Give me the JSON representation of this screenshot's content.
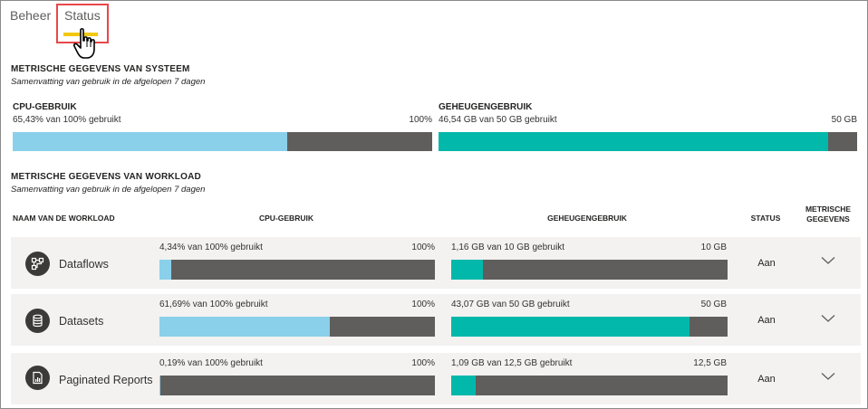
{
  "tabs": [
    {
      "label": "Beheer"
    },
    {
      "label": "Status"
    }
  ],
  "system": {
    "title": "METRISCHE GEGEVENS VAN SYSTEEM",
    "subtitle": "Samenvatting van gebruik in de afgelopen 7 dagen",
    "cpu": {
      "label": "CPU-GEBRUIK",
      "usage_text": "65,43% van 100% gebruikt",
      "max_text": "100%",
      "fraction": 0.6543
    },
    "memory": {
      "label": "GEHEUGENGEBRUIK",
      "usage_text": "46,54 GB van 50 GB gebruikt",
      "max_text": "50 GB",
      "fraction": 0.9308
    }
  },
  "workload": {
    "title": "METRISCHE GEGEVENS VAN WORKLOAD",
    "subtitle": "Samenvatting van gebruik in de afgelopen 7 dagen",
    "columns": {
      "name": "NAAM VAN DE WORKLOAD",
      "cpu": "CPU-GEBRUIK",
      "memory": "GEHEUGENGEBRUIK",
      "status": "STATUS",
      "metrics_line1": "METRISCHE",
      "metrics_line2": "GEGEVENS"
    },
    "rows": [
      {
        "name": "Dataflows",
        "icon": "dataflow-icon",
        "cpu_text": "4,34% van 100% gebruikt",
        "cpu_max": "100%",
        "cpu_fraction": 0.0434,
        "mem_text": "1,16 GB van 10 GB gebruikt",
        "mem_max": "10 GB",
        "mem_fraction": 0.116,
        "status": "Aan"
      },
      {
        "name": "Datasets",
        "icon": "database-icon",
        "cpu_text": "61,69% van 100% gebruikt",
        "cpu_max": "100%",
        "cpu_fraction": 0.6169,
        "mem_text": "43,07 GB van 50 GB gebruikt",
        "mem_max": "50 GB",
        "mem_fraction": 0.8614,
        "status": "Aan"
      },
      {
        "name": "Paginated Reports",
        "icon": "report-icon",
        "cpu_text": "0,19% van 100% gebruikt",
        "cpu_max": "100%",
        "cpu_fraction": 0.0019,
        "mem_text": "1,09 GB van 12,5 GB gebruikt",
        "mem_max": "12,5 GB",
        "mem_fraction": 0.0872,
        "status": "Aan"
      }
    ]
  },
  "colors": {
    "cpu_fill": "#8ad0ea",
    "memory_fill": "#01b8aa",
    "bar_track": "#605e5c",
    "tab_underline": "#f2c811",
    "highlight": "#e8474a"
  }
}
